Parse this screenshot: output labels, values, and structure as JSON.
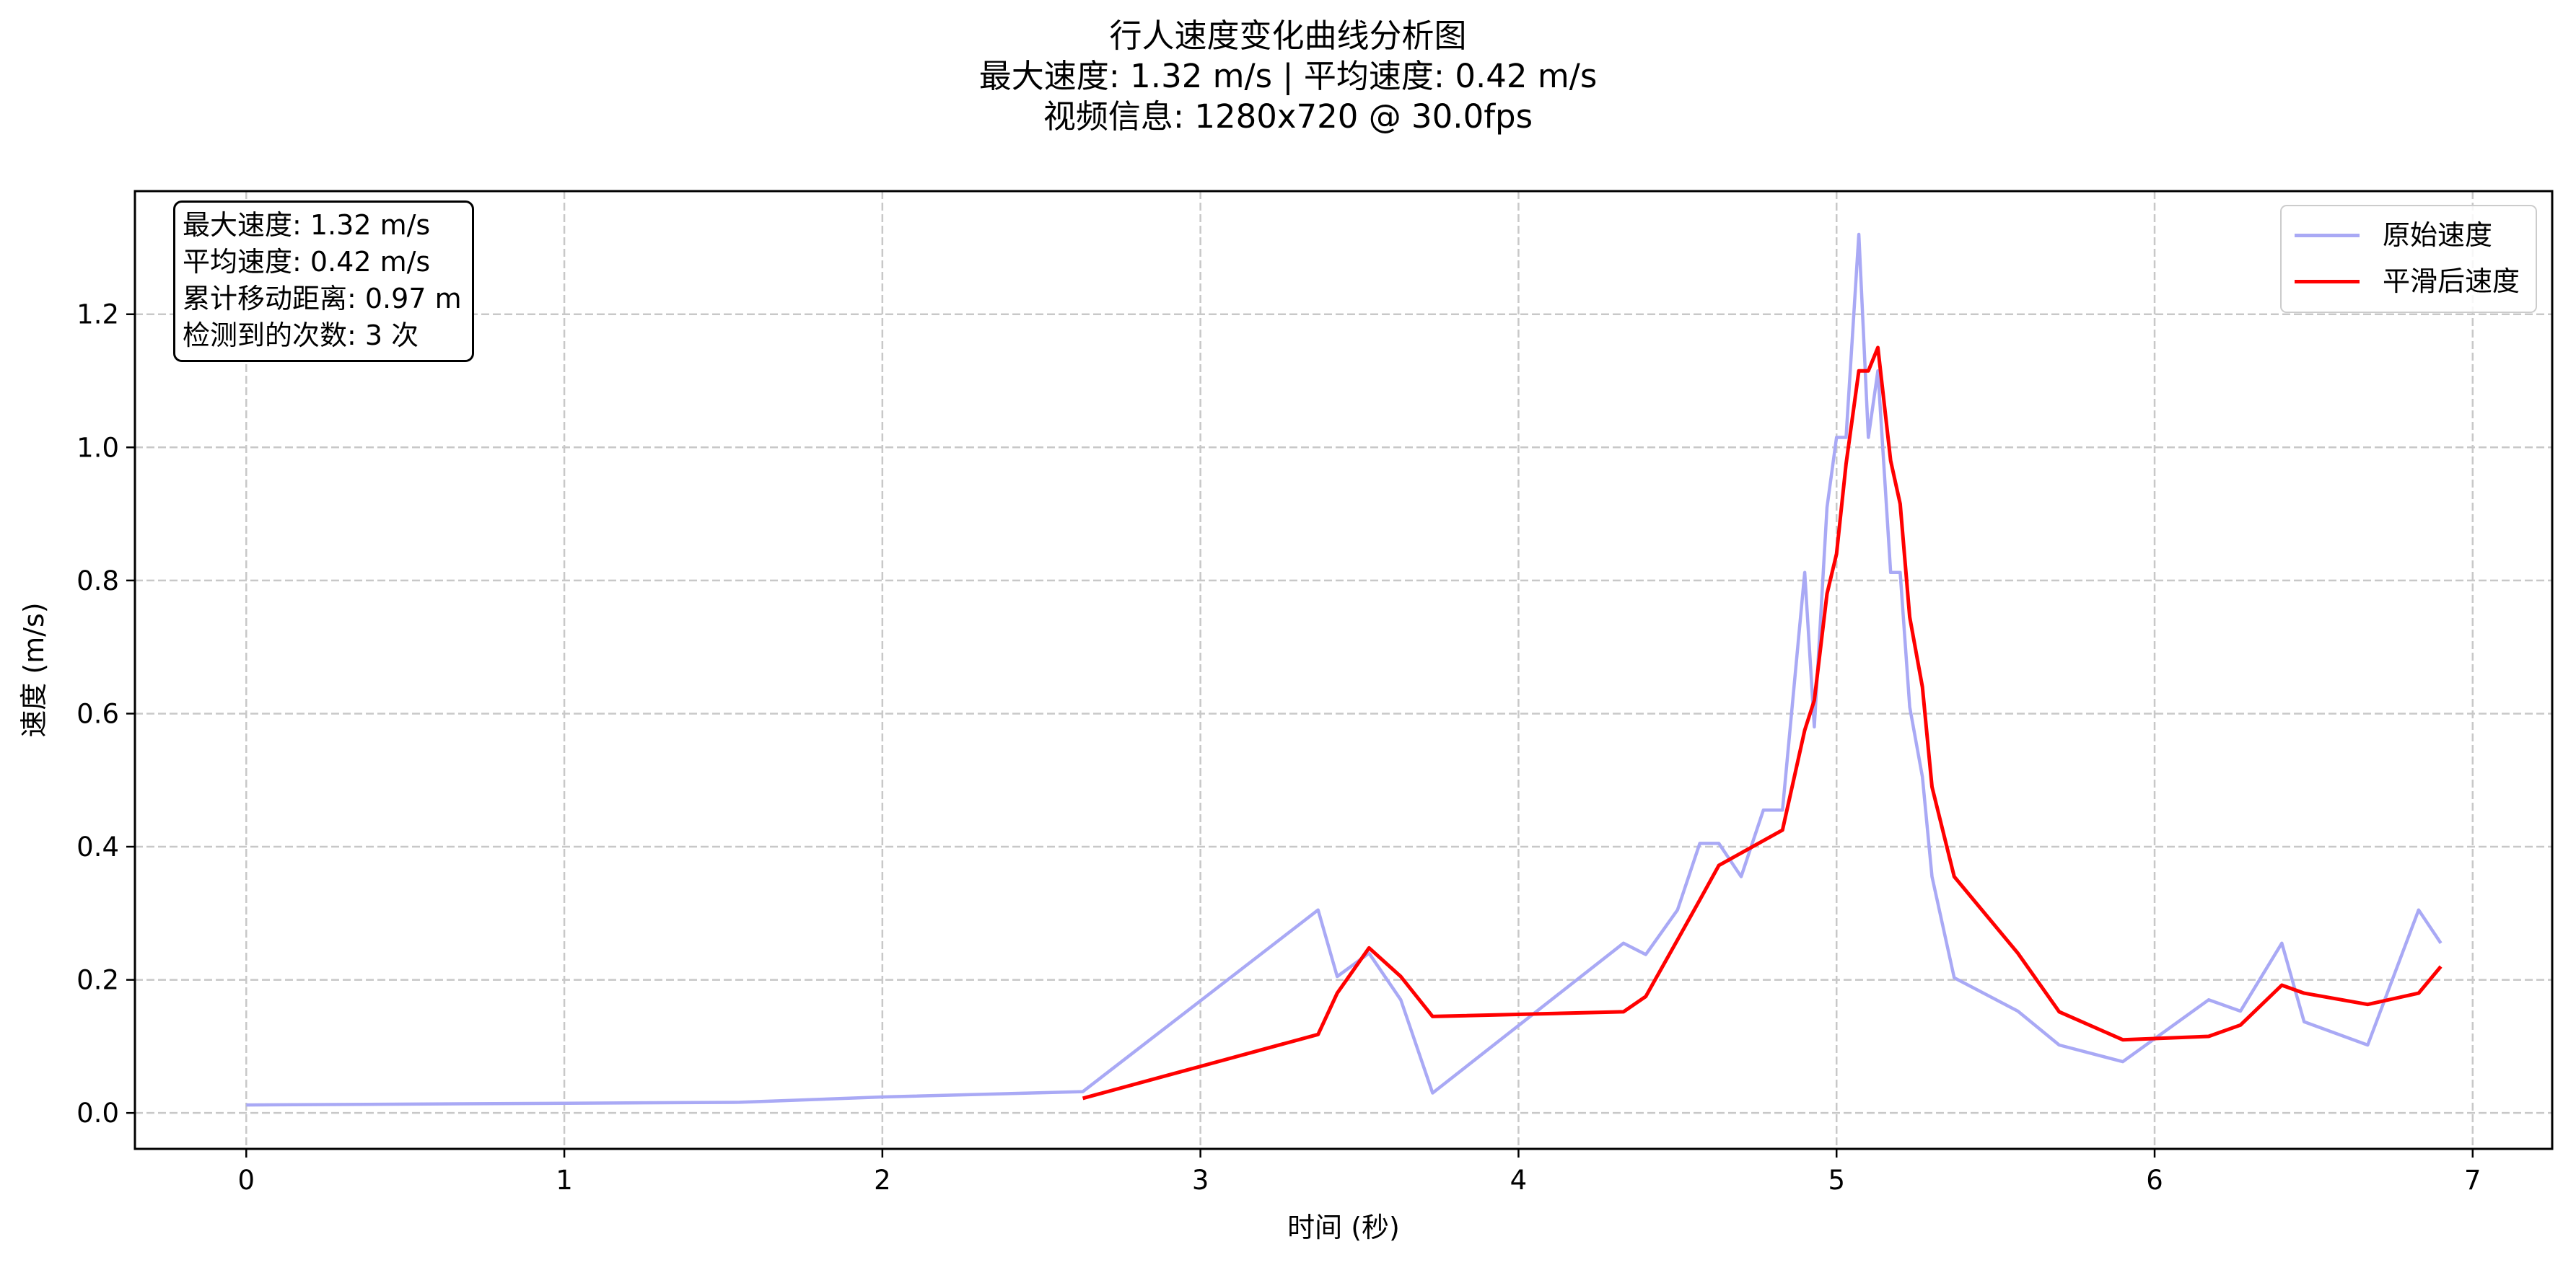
{
  "header": {
    "line1": "行人速度变化曲线分析图",
    "line2": "最大速度: 1.32 m/s | 平均速度: 0.42 m/s",
    "line3": "视频信息: 1280x720 @ 30.0fps"
  },
  "stats_box": {
    "max_speed": "最大速度: 1.32 m/s",
    "avg_speed": "平均速度: 0.42 m/s",
    "total_distance": "累计移动距离: 0.97 m",
    "detections": "检测到的次数: 3 次"
  },
  "colors": {
    "raw": "#a9a9f5",
    "smoothed": "#ff0000",
    "grid": "#c8c8c8"
  },
  "chart_data": {
    "type": "line",
    "xlabel": "时间 (秒)",
    "ylabel": "速度 (m/s)",
    "xlim": [
      -0.35,
      7.25
    ],
    "ylim": [
      -0.054,
      1.385
    ],
    "xticks": [
      0,
      1,
      2,
      3,
      4,
      5,
      6,
      7
    ],
    "yticks": [
      0.0,
      0.2,
      0.4,
      0.6,
      0.8,
      1.0,
      1.2
    ],
    "grid": true,
    "legend_position": "top-right",
    "series": [
      {
        "name": "原始速度",
        "color": "#a9a9f5",
        "x": [
          0,
          1.55,
          2.0,
          2.63,
          3.37,
          3.43,
          3.53,
          3.63,
          3.73,
          4.33,
          4.4,
          4.5,
          4.57,
          4.63,
          4.7,
          4.77,
          4.83,
          4.9,
          4.93,
          4.97,
          5.0,
          5.03,
          5.07,
          5.1,
          5.13,
          5.17,
          5.2,
          5.23,
          5.27,
          5.3,
          5.37,
          5.57,
          5.7,
          5.9,
          6.17,
          6.27,
          6.4,
          6.47,
          6.67,
          6.83,
          6.9
        ],
        "y": [
          0.012,
          0.016,
          0.024,
          0.032,
          0.305,
          0.205,
          0.24,
          0.17,
          0.03,
          0.255,
          0.238,
          0.305,
          0.405,
          0.405,
          0.355,
          0.455,
          0.455,
          0.812,
          0.58,
          0.91,
          1.015,
          1.015,
          1.32,
          1.015,
          1.115,
          0.812,
          0.812,
          0.61,
          0.505,
          0.355,
          0.203,
          0.153,
          0.102,
          0.077,
          0.17,
          0.153,
          0.255,
          0.137,
          0.102,
          0.305,
          0.255
        ]
      },
      {
        "name": "平滑后速度",
        "color": "#ff0000",
        "x": [
          2.63,
          3.37,
          3.43,
          3.53,
          3.63,
          3.73,
          4.33,
          4.4,
          4.5,
          4.57,
          4.63,
          4.83,
          4.9,
          4.93,
          4.97,
          5.0,
          5.03,
          5.07,
          5.1,
          5.13,
          5.17,
          5.2,
          5.23,
          5.27,
          5.3,
          5.37,
          5.57,
          5.7,
          5.9,
          6.17,
          6.27,
          6.4,
          6.47,
          6.67,
          6.83,
          6.9
        ],
        "y": [
          0.022,
          0.118,
          0.18,
          0.248,
          0.205,
          0.145,
          0.152,
          0.175,
          0.26,
          0.32,
          0.372,
          0.425,
          0.575,
          0.62,
          0.78,
          0.84,
          0.975,
          1.115,
          1.115,
          1.15,
          0.98,
          0.915,
          0.745,
          0.64,
          0.49,
          0.355,
          0.24,
          0.152,
          0.11,
          0.115,
          0.132,
          0.192,
          0.18,
          0.163,
          0.18,
          0.22
        ]
      }
    ]
  }
}
